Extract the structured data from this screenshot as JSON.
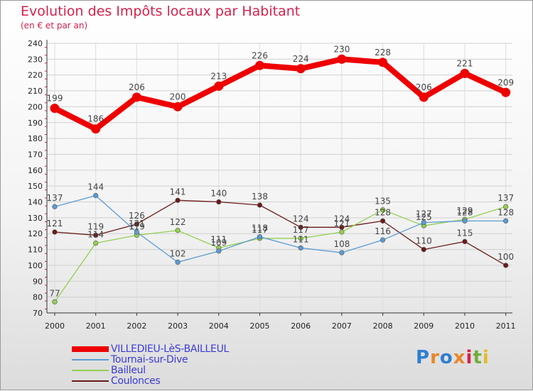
{
  "chart_data": {
    "type": "line",
    "title": "Evolution des Impôts locaux par Habitant",
    "subtitle": "(en € et par an)",
    "xlabel": "",
    "ylabel": "",
    "categories": [
      "2000",
      "2001",
      "2002",
      "2003",
      "2004",
      "2005",
      "2006",
      "2007",
      "2008",
      "2009",
      "2010",
      "2011"
    ],
    "ylim": [
      70,
      240
    ],
    "yticks": [
      "70",
      "80",
      "90",
      "100",
      "110",
      "120",
      "130",
      "140",
      "150",
      "160",
      "170",
      "180",
      "190",
      "200",
      "210",
      "220",
      "230",
      "240"
    ],
    "grid": true,
    "legend_position": "bottom-left",
    "series": [
      {
        "name": "VILLEDIEU-LèS-BAILLEUL",
        "color": "#ee0000",
        "values": [
          199,
          186,
          206,
          200,
          213,
          226,
          224,
          230,
          228,
          206,
          221,
          209
        ]
      },
      {
        "name": "Tournai-sur-Dive",
        "color": "#5b9bd5",
        "values": [
          137,
          144,
          121,
          102,
          109,
          118,
          111,
          108,
          116,
          127,
          128,
          128
        ]
      },
      {
        "name": "Bailleul",
        "color": "#92d050",
        "values": [
          77,
          114,
          119,
          122,
          111,
          117,
          117,
          121,
          135,
          125,
          129,
          137
        ]
      },
      {
        "name": "Coulonces",
        "color": "#6b1a1a",
        "values": [
          121,
          119,
          126,
          141,
          140,
          138,
          124,
          124,
          128,
          110,
          115,
          100
        ]
      }
    ]
  },
  "brand": {
    "letters": [
      "P",
      "r",
      "o",
      "x",
      "i",
      "t",
      "i"
    ],
    "colors": [
      "#2e7fd1",
      "#e8862a",
      "#2e7fd1",
      "#e8862a",
      "#d6204b",
      "#6fae3a",
      "#e8b92a"
    ]
  }
}
